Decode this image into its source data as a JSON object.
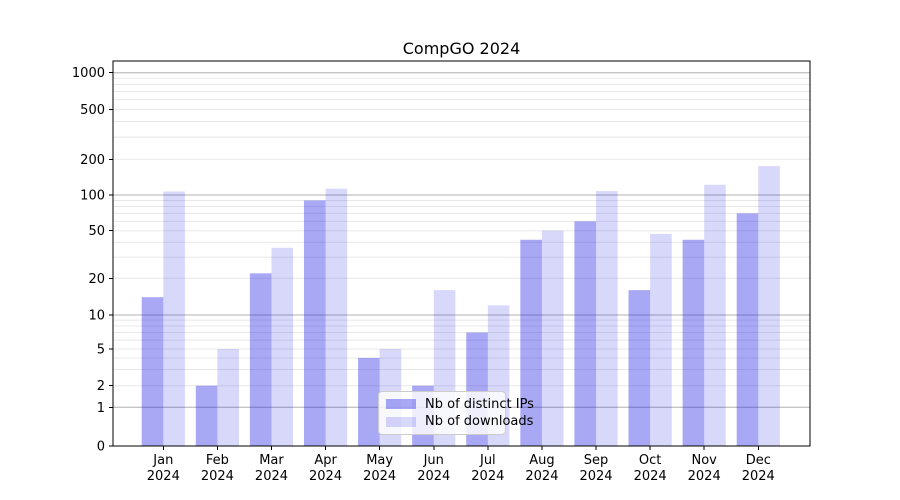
{
  "chart_data": {
    "type": "bar",
    "title": "CompGO 2024",
    "xlabel": "",
    "ylabel": "",
    "categories": [
      "Jan",
      "Feb",
      "Mar",
      "Apr",
      "May",
      "Jun",
      "Jul",
      "Aug",
      "Sep",
      "Oct",
      "Nov",
      "Dec"
    ],
    "x_tick_year": "2024",
    "series": [
      {
        "name": "Nb of distinct IPs",
        "color": "rgba(26,26,230,0.38)",
        "color_hex_effective": "#a9a9f5",
        "values": [
          14,
          2,
          22,
          90,
          4,
          2,
          7,
          42,
          60,
          16,
          42,
          70
        ]
      },
      {
        "name": "Nb of downloads",
        "color": "rgba(26,26,230,0.17)",
        "color_hex_effective": "#dadaf8",
        "values": [
          107,
          5,
          36,
          113,
          5,
          16,
          12,
          50,
          108,
          47,
          122,
          175
        ]
      }
    ],
    "y_axis": {
      "scale": "symlog",
      "ticks": [
        0,
        1,
        2,
        5,
        10,
        20,
        50,
        100,
        200,
        500,
        1000
      ],
      "anchors": [
        [
          0,
          0
        ],
        [
          1,
          0.1005
        ],
        [
          2,
          0.1566
        ],
        [
          5,
          0.2519
        ],
        [
          10,
          0.3403
        ],
        [
          20,
          0.4356
        ],
        [
          50,
          0.5592
        ],
        [
          100,
          0.6519
        ],
        [
          200,
          0.7447
        ],
        [
          500,
          0.8745
        ],
        [
          1000,
          0.9696
        ]
      ],
      "major_gridlines": [
        1,
        10,
        100,
        1000
      ],
      "minor_gridlines": [
        2,
        3,
        4,
        5,
        6,
        7,
        8,
        9,
        20,
        30,
        40,
        50,
        60,
        70,
        80,
        90,
        200,
        300,
        400,
        500,
        600,
        700,
        800,
        900
      ],
      "grid_major_color": "#b0b0b0",
      "grid_minor_color": "#e8e8e8",
      "ylim": [
        0,
        1250
      ]
    },
    "legend": {
      "position": "lower center"
    },
    "axis_color": "#000000",
    "background_color": "#ffffff"
  }
}
